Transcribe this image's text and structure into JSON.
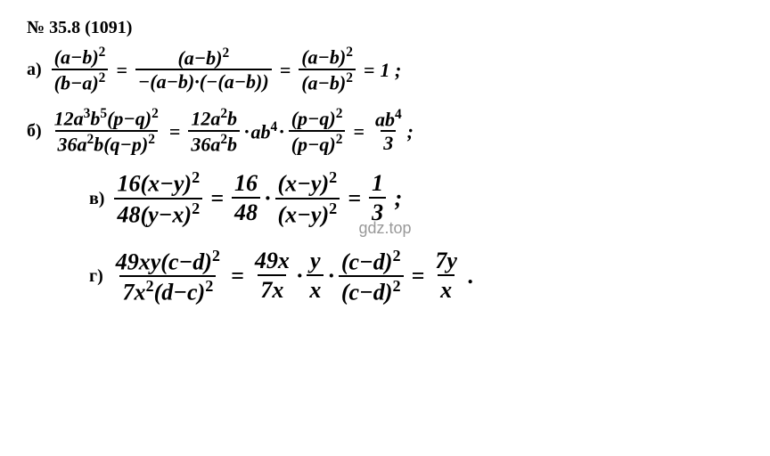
{
  "problem_number": "№ 35.8 (1091)",
  "watermark": "gdz.top",
  "text_color": "#000000",
  "bg_color": "#ffffff",
  "watermark_color": "#999999",
  "font_family": "Times New Roman",
  "font_style": "italic",
  "font_weight": "bold",
  "parts": {
    "a": {
      "label": "а)",
      "f1_num": "(a−b)",
      "f1_num_exp": "2",
      "f1_den": "(b−a)",
      "f1_den_exp": "2",
      "f2_num": "(a−b)",
      "f2_num_exp": "2",
      "f2_den": "−(a−b)·(−(a−b))",
      "f3_num": "(a−b)",
      "f3_num_exp": "2",
      "f3_den": "(a−b)",
      "f3_den_exp": "2",
      "result": "1",
      "tail": ";"
    },
    "b": {
      "label": "б)",
      "f1_num_a": "12a",
      "f1_num_a_exp": "3",
      "f1_num_b": "b",
      "f1_num_b_exp": "5",
      "f1_num_c": "(p−q)",
      "f1_num_c_exp": "2",
      "f1_den_a": "36a",
      "f1_den_a_exp": "2",
      "f1_den_b": "b(q−p)",
      "f1_den_b_exp": "2",
      "f2_num": "12a",
      "f2_num_exp": "2",
      "f2_num_t": "b",
      "f2_den": "36a",
      "f2_den_exp": "2",
      "f2_den_t": "b",
      "mid": "ab",
      "mid_exp": "4",
      "f3_num": "(p−q)",
      "f3_num_exp": "2",
      "f3_den": "(p−q)",
      "f3_den_exp": "2",
      "res_num": "ab",
      "res_num_exp": "4",
      "res_den": "3",
      "tail": ";"
    },
    "v": {
      "label": "в)",
      "f1_num_a": "16(x−y)",
      "f1_num_exp": "2",
      "f1_den_a": "48(y−x)",
      "f1_den_exp": "2",
      "f2_num": "16",
      "f2_den": "48",
      "f3_num": "(x−y)",
      "f3_num_exp": "2",
      "f3_den": "(x−y)",
      "f3_den_exp": "2",
      "res_num": "1",
      "res_den": "3",
      "tail": ";"
    },
    "g": {
      "label": "г)",
      "f1_num": "49xy(c−d)",
      "f1_num_exp": "2",
      "f1_den_a": "7x",
      "f1_den_a_exp": "2",
      "f1_den_b": "(d−c)",
      "f1_den_b_exp": "2",
      "f2_num": "49x",
      "f2_den": "7x",
      "f3_num": "y",
      "f3_den": "x",
      "f4_num": "(c−d)",
      "f4_num_exp": "2",
      "f4_den": "(c−d)",
      "f4_den_exp": "2",
      "res_num": "7y",
      "res_den": "x",
      "tail": "."
    }
  },
  "equals": "="
}
